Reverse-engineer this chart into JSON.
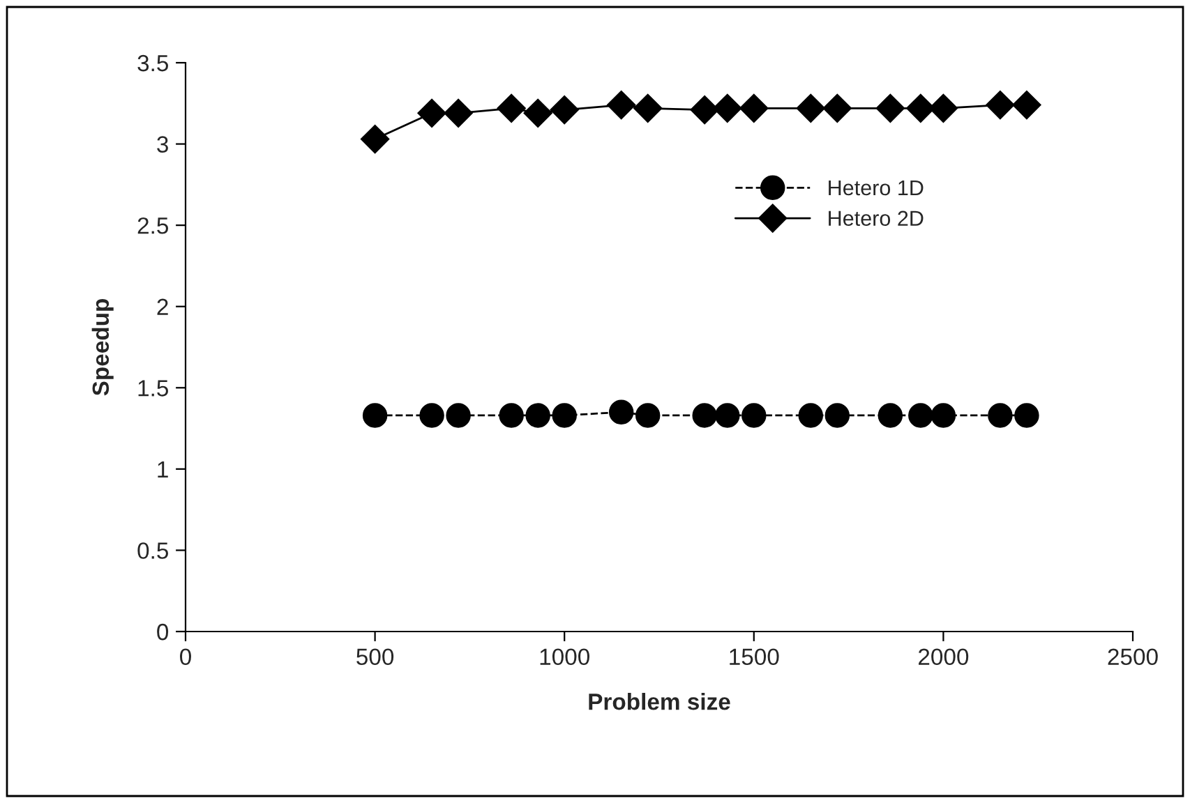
{
  "chart_data": {
    "type": "line",
    "xlabel": "Problem size",
    "ylabel": "Speedup",
    "xlim": [
      0,
      2500
    ],
    "xticks": [
      0,
      500,
      1000,
      1500,
      2000,
      2500
    ],
    "ylim": [
      0,
      3.5
    ],
    "yticks": [
      0,
      0.5,
      1,
      1.5,
      2,
      2.5,
      3,
      3.5
    ],
    "x": [
      500,
      650,
      720,
      860,
      930,
      1000,
      1150,
      1220,
      1370,
      1430,
      1500,
      1650,
      1720,
      1860,
      1940,
      2000,
      2150,
      2220
    ],
    "series": [
      {
        "name": "Hetero 1D",
        "color": "#000000",
        "marker": "circle",
        "line_style": "dashed",
        "values": [
          1.33,
          1.33,
          1.33,
          1.33,
          1.33,
          1.33,
          1.35,
          1.33,
          1.33,
          1.33,
          1.33,
          1.33,
          1.33,
          1.33,
          1.33,
          1.33,
          1.33,
          1.33
        ]
      },
      {
        "name": "Hetero 2D",
        "color": "#000000",
        "marker": "diamond",
        "line_style": "solid",
        "values": [
          3.03,
          3.19,
          3.19,
          3.22,
          3.19,
          3.21,
          3.24,
          3.22,
          3.21,
          3.22,
          3.22,
          3.22,
          3.22,
          3.22,
          3.22,
          3.22,
          3.24,
          3.24
        ]
      }
    ],
    "grid": false,
    "legend": "right"
  }
}
